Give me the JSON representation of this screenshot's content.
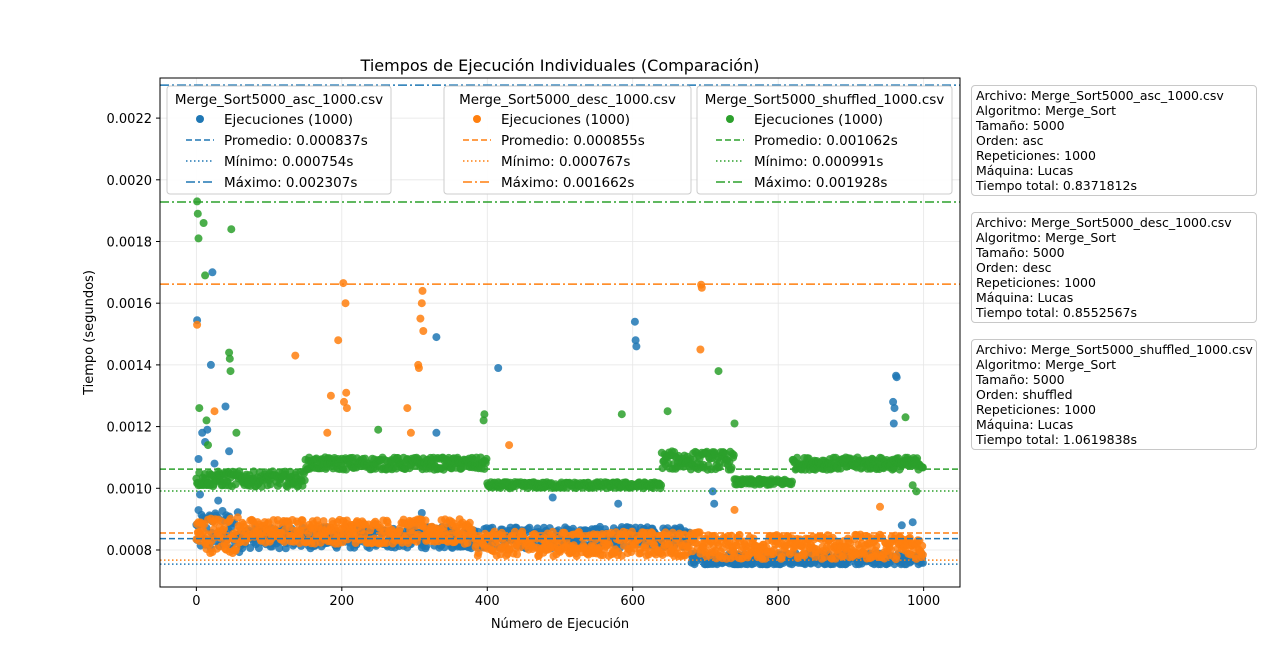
{
  "chart_data": {
    "type": "scatter",
    "title": "Tiempos de Ejecución Individuales (Comparación)",
    "xlabel": "Número de Ejecución",
    "ylabel": "Tiempo (segundos)",
    "xlim": [
      -50,
      1050
    ],
    "ylim": [
      0.00068,
      0.00233
    ],
    "xticks": [
      0,
      200,
      400,
      600,
      800,
      1000
    ],
    "xtick_labels": [
      "0",
      "200",
      "400",
      "600",
      "800",
      "1000"
    ],
    "yticks": [
      0.0008,
      0.001,
      0.0012,
      0.0014,
      0.0016,
      0.0018,
      0.002,
      0.0022
    ],
    "ytick_labels": [
      "0.0008",
      "0.0010",
      "0.0012",
      "0.0014",
      "0.0016",
      "0.0018",
      "0.0020",
      "0.0022"
    ],
    "grid": true,
    "legend_placement": "top",
    "series": [
      {
        "name": "Merge_Sort5000_asc_1000.csv",
        "color": "#1f77b4",
        "points_label": "Ejecuciones (1000)",
        "n": 1000,
        "mean": 0.000837,
        "min": 0.000754,
        "max": 0.002307,
        "mean_label": "Promedio: 0.000837s",
        "min_label": "Mínimo: 0.000754s",
        "max_label": "Máximo: 0.002307s",
        "outliers": [
          [
            1,
            0.001545
          ],
          [
            3,
            0.001095
          ],
          [
            5,
            0.00098
          ],
          [
            8,
            0.00118
          ],
          [
            12,
            0.00115
          ],
          [
            15,
            0.00119
          ],
          [
            20,
            0.0014
          ],
          [
            22,
            0.0017
          ],
          [
            25,
            0.00108
          ],
          [
            30,
            0.00096
          ],
          [
            40,
            0.001265
          ],
          [
            45,
            0.00112
          ],
          [
            330,
            0.00149
          ],
          [
            415,
            0.00139
          ],
          [
            603,
            0.00154
          ],
          [
            604,
            0.00148
          ],
          [
            605,
            0.00146
          ],
          [
            962,
            0.001365
          ],
          [
            963,
            0.00136
          ],
          [
            958,
            0.00128
          ],
          [
            960,
            0.00126
          ],
          [
            959,
            0.00121
          ],
          [
            710,
            0.00099
          ],
          [
            712,
            0.00095
          ],
          [
            490,
            0.00097
          ],
          [
            310,
            0.00092
          ],
          [
            580,
            0.00095
          ],
          [
            330,
            0.00118
          ],
          [
            970,
            0.00088
          ],
          [
            985,
            0.00089
          ]
        ],
        "segments": [
          {
            "from": 0,
            "to": 60,
            "base": 0.00086,
            "spread": 7e-05
          },
          {
            "from": 60,
            "to": 680,
            "base": 0.00084,
            "spread": 3.5e-05
          },
          {
            "from": 680,
            "to": 1000,
            "base": 0.00077,
            "spread": 2e-05
          }
        ]
      },
      {
        "name": "Merge_Sort5000_desc_1000.csv",
        "color": "#ff7f0e",
        "points_label": "Ejecuciones (1000)",
        "n": 1000,
        "mean": 0.000855,
        "min": 0.000767,
        "max": 0.001662,
        "mean_label": "Promedio: 0.000855s",
        "min_label": "Mínimo: 0.000767s",
        "max_label": "Máximo: 0.001662s",
        "outliers": [
          [
            1,
            0.00153
          ],
          [
            3,
            0.00089
          ],
          [
            25,
            0.00125
          ],
          [
            136,
            0.00143
          ],
          [
            180,
            0.00118
          ],
          [
            185,
            0.0013
          ],
          [
            195,
            0.00148
          ],
          [
            202,
            0.001665
          ],
          [
            203,
            0.00128
          ],
          [
            205,
            0.0016
          ],
          [
            206,
            0.00131
          ],
          [
            207,
            0.00126
          ],
          [
            290,
            0.00126
          ],
          [
            295,
            0.00118
          ],
          [
            305,
            0.0014
          ],
          [
            306,
            0.00139
          ],
          [
            308,
            0.00155
          ],
          [
            310,
            0.0016
          ],
          [
            311,
            0.00164
          ],
          [
            312,
            0.00151
          ],
          [
            430,
            0.00114
          ],
          [
            694,
            0.00166
          ],
          [
            695,
            0.00165
          ],
          [
            693,
            0.00145
          ],
          [
            740,
            0.00093
          ],
          [
            940,
            0.00094
          ]
        ],
        "segments": [
          {
            "from": 0,
            "to": 60,
            "base": 0.00085,
            "spread": 6e-05
          },
          {
            "from": 60,
            "to": 380,
            "base": 0.00086,
            "spread": 4e-05
          },
          {
            "from": 380,
            "to": 700,
            "base": 0.00082,
            "spread": 4e-05
          },
          {
            "from": 700,
            "to": 1000,
            "base": 0.00081,
            "spread": 4e-05
          }
        ]
      },
      {
        "name": "Merge_Sort5000_shuffled_1000.csv",
        "color": "#2ca02c",
        "points_label": "Ejecuciones (1000)",
        "n": 1000,
        "mean": 0.001062,
        "min": 0.000991,
        "max": 0.001928,
        "mean_label": "Promedio: 0.001062s",
        "min_label": "Mínimo: 0.000991s",
        "max_label": "Máximo: 0.001928s",
        "outliers": [
          [
            1,
            0.00193
          ],
          [
            2,
            0.00189
          ],
          [
            3,
            0.00181
          ],
          [
            4,
            0.00126
          ],
          [
            10,
            0.00186
          ],
          [
            12,
            0.00169
          ],
          [
            14,
            0.00122
          ],
          [
            16,
            0.00114
          ],
          [
            45,
            0.00144
          ],
          [
            46,
            0.00142
          ],
          [
            47,
            0.00138
          ],
          [
            48,
            0.00184
          ],
          [
            55,
            0.00118
          ],
          [
            250,
            0.00119
          ],
          [
            396,
            0.00124
          ],
          [
            395,
            0.00122
          ],
          [
            585,
            0.00124
          ],
          [
            648,
            0.00125
          ],
          [
            718,
            0.00138
          ],
          [
            740,
            0.00121
          ],
          [
            975,
            0.00123
          ],
          [
            985,
            0.00101
          ],
          [
            990,
            0.00099
          ]
        ],
        "segments": [
          {
            "from": 0,
            "to": 150,
            "base": 0.00103,
            "spread": 2.5e-05
          },
          {
            "from": 150,
            "to": 400,
            "base": 0.00108,
            "spread": 2e-05
          },
          {
            "from": 400,
            "to": 640,
            "base": 0.00101,
            "spread": 1e-05
          },
          {
            "from": 640,
            "to": 740,
            "base": 0.00109,
            "spread": 3e-05
          },
          {
            "from": 740,
            "to": 820,
            "base": 0.00102,
            "spread": 1e-05
          },
          {
            "from": 820,
            "to": 1000,
            "base": 0.00108,
            "spread": 2e-05
          }
        ]
      }
    ]
  },
  "info_boxes": [
    {
      "lines": [
        "Archivo: Merge_Sort5000_asc_1000.csv",
        "Algoritmo: Merge_Sort",
        "Tamaño: 5000",
        "Orden: asc",
        "Repeticiones: 1000",
        "Máquina: Lucas",
        "Tiempo total: 0.8371812s"
      ]
    },
    {
      "lines": [
        "Archivo: Merge_Sort5000_desc_1000.csv",
        "Algoritmo: Merge_Sort",
        "Tamaño: 5000",
        "Orden: desc",
        "Repeticiones: 1000",
        "Máquina: Lucas",
        "Tiempo total: 0.8552567s"
      ]
    },
    {
      "lines": [
        "Archivo: Merge_Sort5000_shuffled_1000.csv",
        "Algoritmo: Merge_Sort",
        "Tamaño: 5000",
        "Orden: shuffled",
        "Repeticiones: 1000",
        "Máquina: Lucas",
        "Tiempo total: 1.0619838s"
      ]
    }
  ]
}
